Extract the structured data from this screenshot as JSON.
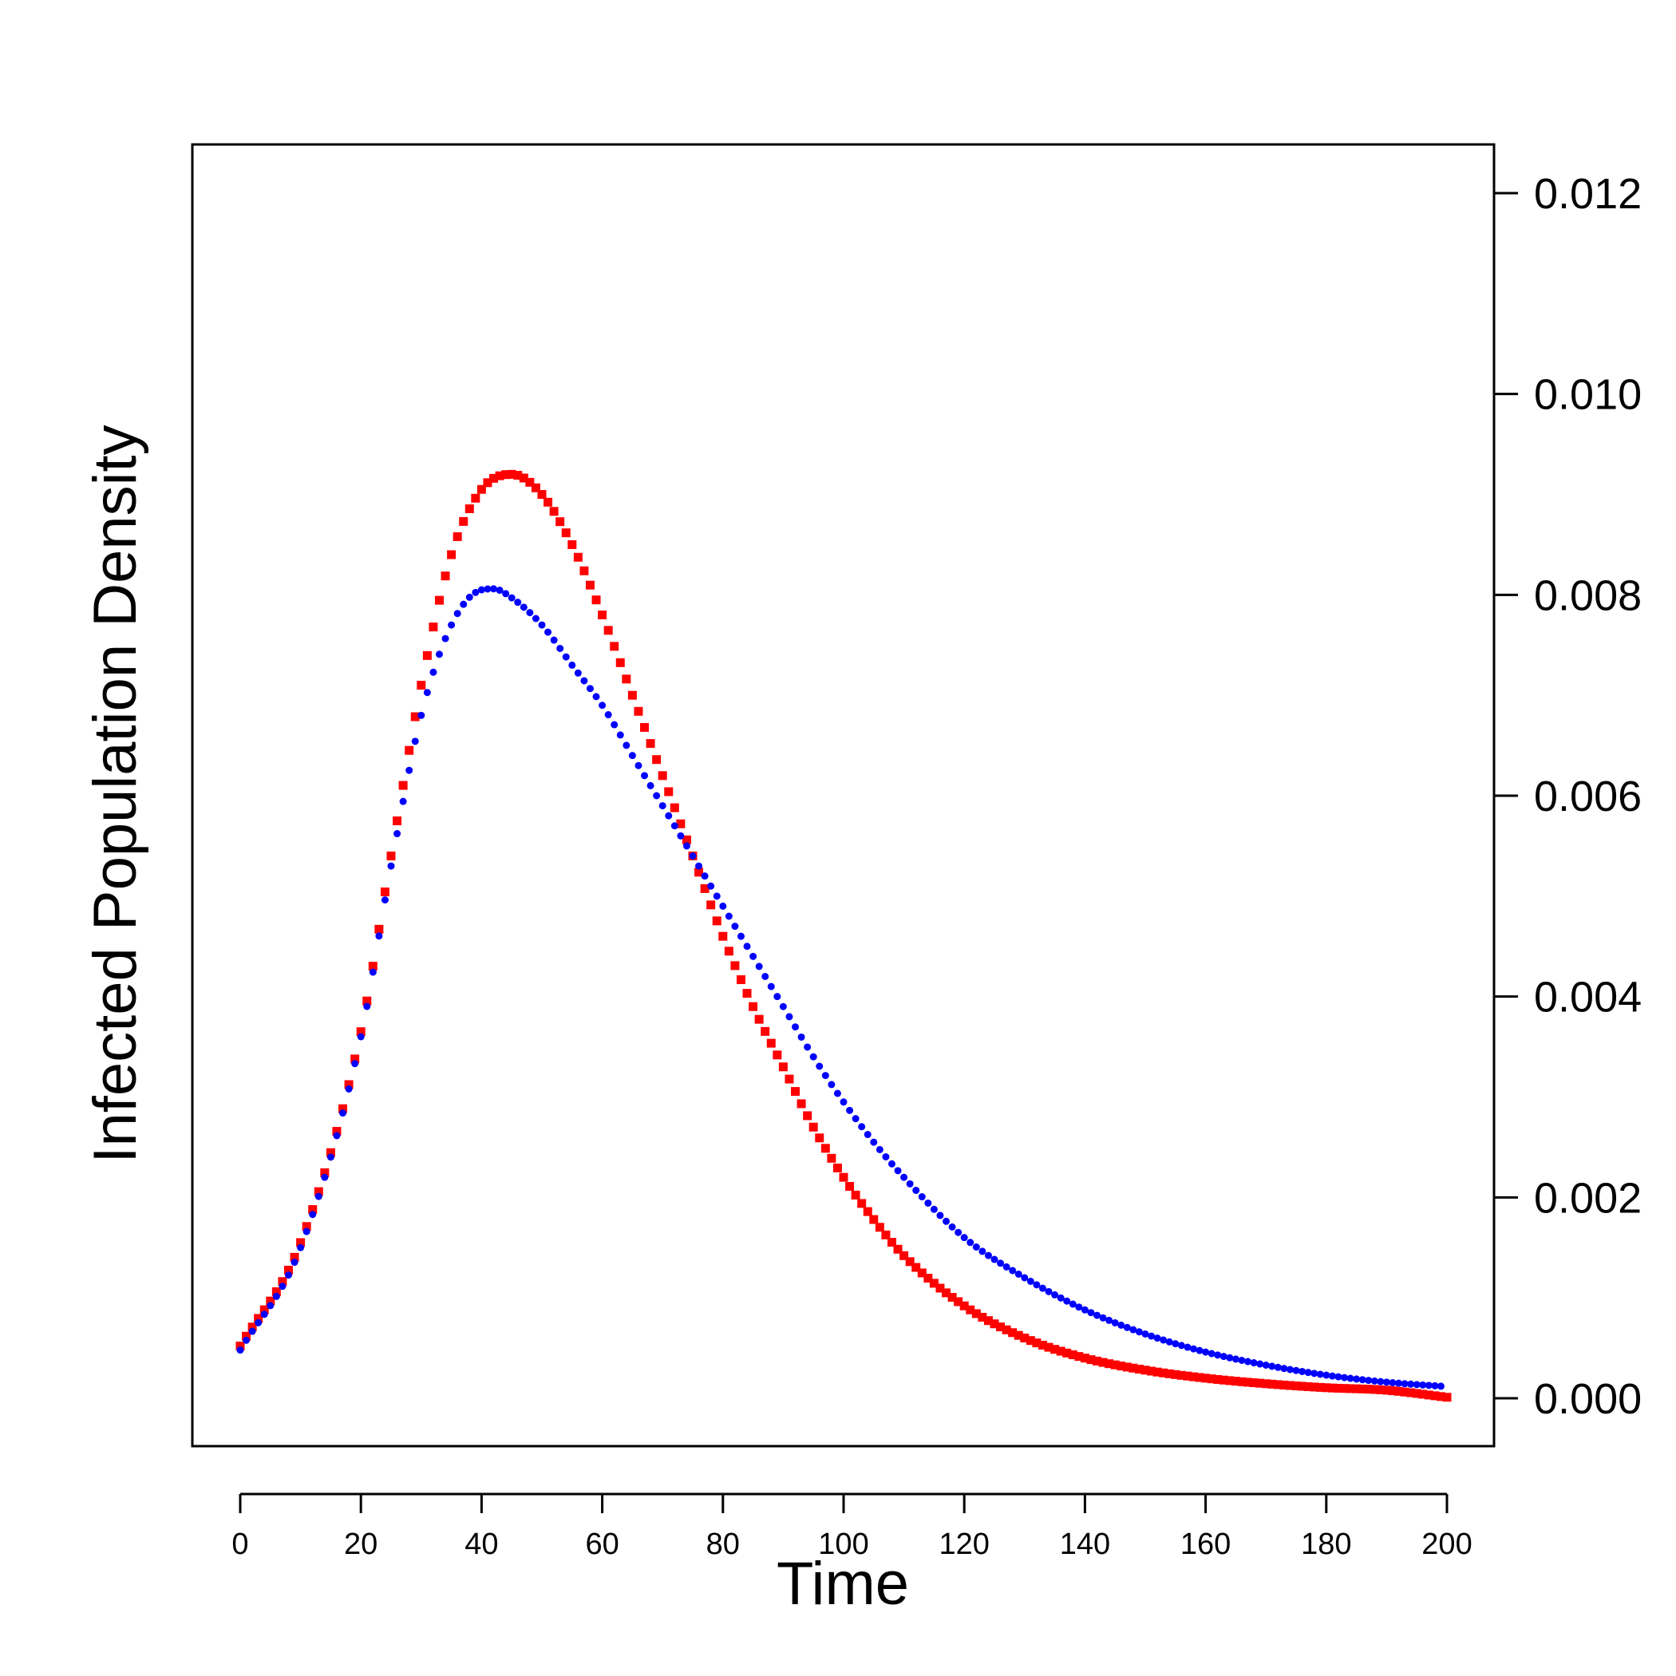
{
  "chart_data": {
    "type": "scatter",
    "title": "",
    "xlabel": "Time",
    "ylabel": "Infected Population Density",
    "xlim": [
      0,
      200
    ],
    "ylim": [
      0,
      0.012
    ],
    "x_ticks": [
      "0",
      "20",
      "40",
      "60",
      "80",
      "100",
      "120",
      "140",
      "160",
      "180",
      "200"
    ],
    "y_ticks": [
      "0.000",
      "0.002",
      "0.004",
      "0.006",
      "0.008",
      "0.010",
      "0.012"
    ],
    "grid": false,
    "legend": "none",
    "y_axis_side": "right",
    "colors": {
      "series_red": "#ff0000",
      "series_blue": "#0000ff",
      "axis": "#000000"
    },
    "series": [
      {
        "name": "red",
        "marker": "square",
        "color": "#ff0000",
        "x": [
          0,
          10,
          20,
          25,
          30,
          35,
          40,
          45,
          50,
          55,
          60,
          65,
          70,
          75,
          80,
          85,
          90,
          95,
          100,
          105,
          110,
          120,
          130,
          140,
          150,
          160,
          170,
          180,
          190,
          200
        ],
        "y": [
          0.00052,
          0.00155,
          0.00365,
          0.0054,
          0.0071,
          0.0084,
          0.00905,
          0.0092,
          0.009,
          0.0085,
          0.0078,
          0.007,
          0.0062,
          0.0054,
          0.0046,
          0.0039,
          0.0033,
          0.0027,
          0.0022,
          0.00178,
          0.00142,
          0.00092,
          0.0006,
          0.0004,
          0.00028,
          0.0002,
          0.000145,
          0.000105,
          8e-05,
          1e-05
        ]
      },
      {
        "name": "blue",
        "marker": "circle",
        "color": "#0000ff",
        "x": [
          0,
          10,
          20,
          25,
          30,
          35,
          40,
          42,
          45,
          50,
          55,
          60,
          65,
          70,
          75,
          80,
          85,
          90,
          95,
          100,
          105,
          110,
          120,
          130,
          140,
          150,
          160,
          170,
          180,
          190,
          199
        ],
        "y": [
          0.00048,
          0.0015,
          0.0036,
          0.0053,
          0.0068,
          0.0077,
          0.00805,
          0.00806,
          0.00797,
          0.0077,
          0.0073,
          0.0069,
          0.0064,
          0.0059,
          0.0054,
          0.0049,
          0.0044,
          0.0039,
          0.0034,
          0.00295,
          0.00255,
          0.0022,
          0.0016,
          0.0012,
          0.00088,
          0.00064,
          0.00046,
          0.00033,
          0.00023,
          0.00016,
          0.00012
        ]
      }
    ]
  }
}
